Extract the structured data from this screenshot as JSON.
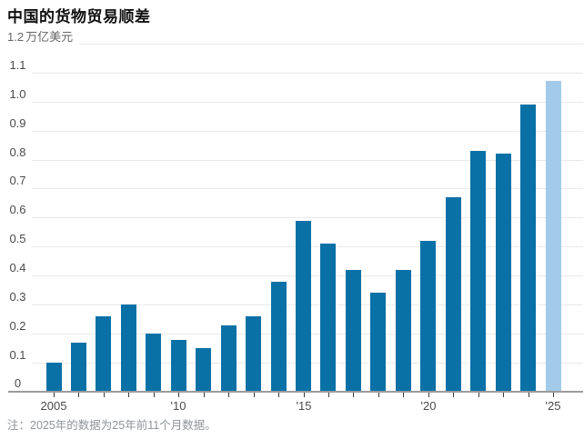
{
  "header": {
    "title": "中国的货物贸易顺差"
  },
  "chart_data": {
    "type": "bar",
    "title": "中国的货物贸易顺差",
    "unit_label": "万亿美元",
    "y_top_label": "1.2",
    "categories": [
      2005,
      2006,
      2007,
      2008,
      2009,
      2010,
      2011,
      2012,
      2013,
      2014,
      2015,
      2016,
      2017,
      2018,
      2019,
      2020,
      2021,
      2022,
      2023,
      2024,
      2025
    ],
    "values": [
      0.1,
      0.17,
      0.26,
      0.3,
      0.2,
      0.18,
      0.15,
      0.23,
      0.26,
      0.38,
      0.59,
      0.51,
      0.42,
      0.34,
      0.42,
      0.52,
      0.67,
      0.83,
      0.82,
      0.99,
      1.07
    ],
    "ylim": [
      0,
      1.2
    ],
    "ytick_step": 0.1,
    "xtick_labels": {
      "2005": "2005",
      "2010": "'10",
      "2015": "'15",
      "2020": "'20",
      "2025": "'25"
    },
    "grid": true,
    "legend": null,
    "bar_color": "#0a71a7",
    "highlight_color": "#a3cbe9",
    "highlight_category": 2025
  },
  "footnote": {
    "text": "注：2025年的数据为25年前11个月数据。"
  },
  "colors": {
    "background": "#ffffff",
    "title_text": "#111111",
    "axis_text": "#4a4a4a",
    "unit_text": "#666666",
    "gridline": "#e9e9e9",
    "baseline": "#9c9c9c",
    "tick": "#3a3a3a",
    "note_text": "#8f9399"
  }
}
